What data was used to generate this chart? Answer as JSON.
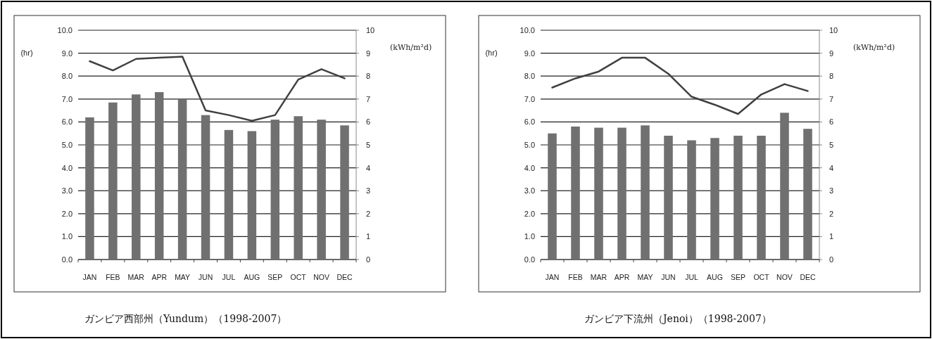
{
  "chart_data": [
    {
      "type": "bar",
      "title": "ガンビア西部州（Yundum）（1998-2007）",
      "ylabel": "(hr)",
      "y2label": "(kWh/m²d)",
      "grid": "y",
      "categories": [
        "JAN",
        "FEB",
        "MAR",
        "APR",
        "MAY",
        "JUN",
        "JUL",
        "AUG",
        "SEP",
        "OCT",
        "NOV",
        "DEC"
      ],
      "series": [
        {
          "color": "#707070",
          "values": [
            6.2,
            6.85,
            7.2,
            7.3,
            7.0,
            6.3,
            5.65,
            5.6,
            6.1,
            6.25,
            6.1,
            5.85
          ]
        },
        {
          "type": "line",
          "axis": "y2",
          "color": "#404040",
          "values": [
            8.65,
            8.25,
            8.75,
            8.8,
            8.85,
            6.5,
            6.3,
            6.05,
            6.3,
            7.85,
            8.3,
            7.9
          ]
        }
      ],
      "ylim": [
        0,
        10
      ],
      "yticks": [
        {
          "value": 0,
          "label": "0.0"
        },
        {
          "value": 1,
          "label": "1.0"
        },
        {
          "value": 2,
          "label": "2.0"
        },
        {
          "value": 3,
          "label": "3.0"
        },
        {
          "value": 4,
          "label": "4.0"
        },
        {
          "value": 5,
          "label": "5.0"
        },
        {
          "value": 6,
          "label": "6.0"
        },
        {
          "value": 7,
          "label": "7.0"
        },
        {
          "value": 8,
          "label": "8.0"
        },
        {
          "value": 9,
          "label": "9.0"
        },
        {
          "value": 10,
          "label": "10.0"
        }
      ],
      "y2lim": [
        0,
        10
      ],
      "y2ticks": [
        0,
        1,
        2,
        3,
        4,
        5,
        6,
        7,
        8,
        9,
        10
      ]
    },
    {
      "type": "bar",
      "title": "ガンビア下流州（Jenoi）（1998-2007）",
      "ylabel": "(hr)",
      "y2label": "(kWh/m²d)",
      "grid": "y",
      "categories": [
        "JAN",
        "FEB",
        "MAR",
        "APR",
        "MAY",
        "JUN",
        "JUL",
        "AUG",
        "SEP",
        "OCT",
        "NOV",
        "DEC"
      ],
      "series": [
        {
          "color": "#707070",
          "values": [
            5.5,
            5.8,
            5.75,
            5.75,
            5.85,
            5.4,
            5.2,
            5.3,
            5.4,
            5.4,
            6.4,
            5.7
          ]
        },
        {
          "type": "line",
          "axis": "y2",
          "color": "#404040",
          "values": [
            7.5,
            7.9,
            8.2,
            8.8,
            8.8,
            8.1,
            7.1,
            6.75,
            6.35,
            7.2,
            7.65,
            7.35
          ]
        }
      ],
      "ylim": [
        0,
        10
      ],
      "yticks": [
        {
          "value": 0,
          "label": "0.0"
        },
        {
          "value": 1,
          "label": "1.0"
        },
        {
          "value": 2,
          "label": "2.0"
        },
        {
          "value": 3,
          "label": "3.0"
        },
        {
          "value": 4,
          "label": "4.0"
        },
        {
          "value": 5,
          "label": "5.0"
        },
        {
          "value": 6,
          "label": "6.0"
        },
        {
          "value": 7,
          "label": "7.0"
        },
        {
          "value": 8,
          "label": "8.0"
        },
        {
          "value": 9,
          "label": "9.0"
        },
        {
          "value": 10,
          "label": "10.0"
        }
      ],
      "y2lim": [
        0,
        10
      ],
      "y2ticks": [
        0,
        1,
        2,
        3,
        4,
        5,
        6,
        7,
        8,
        9,
        10
      ]
    }
  ]
}
